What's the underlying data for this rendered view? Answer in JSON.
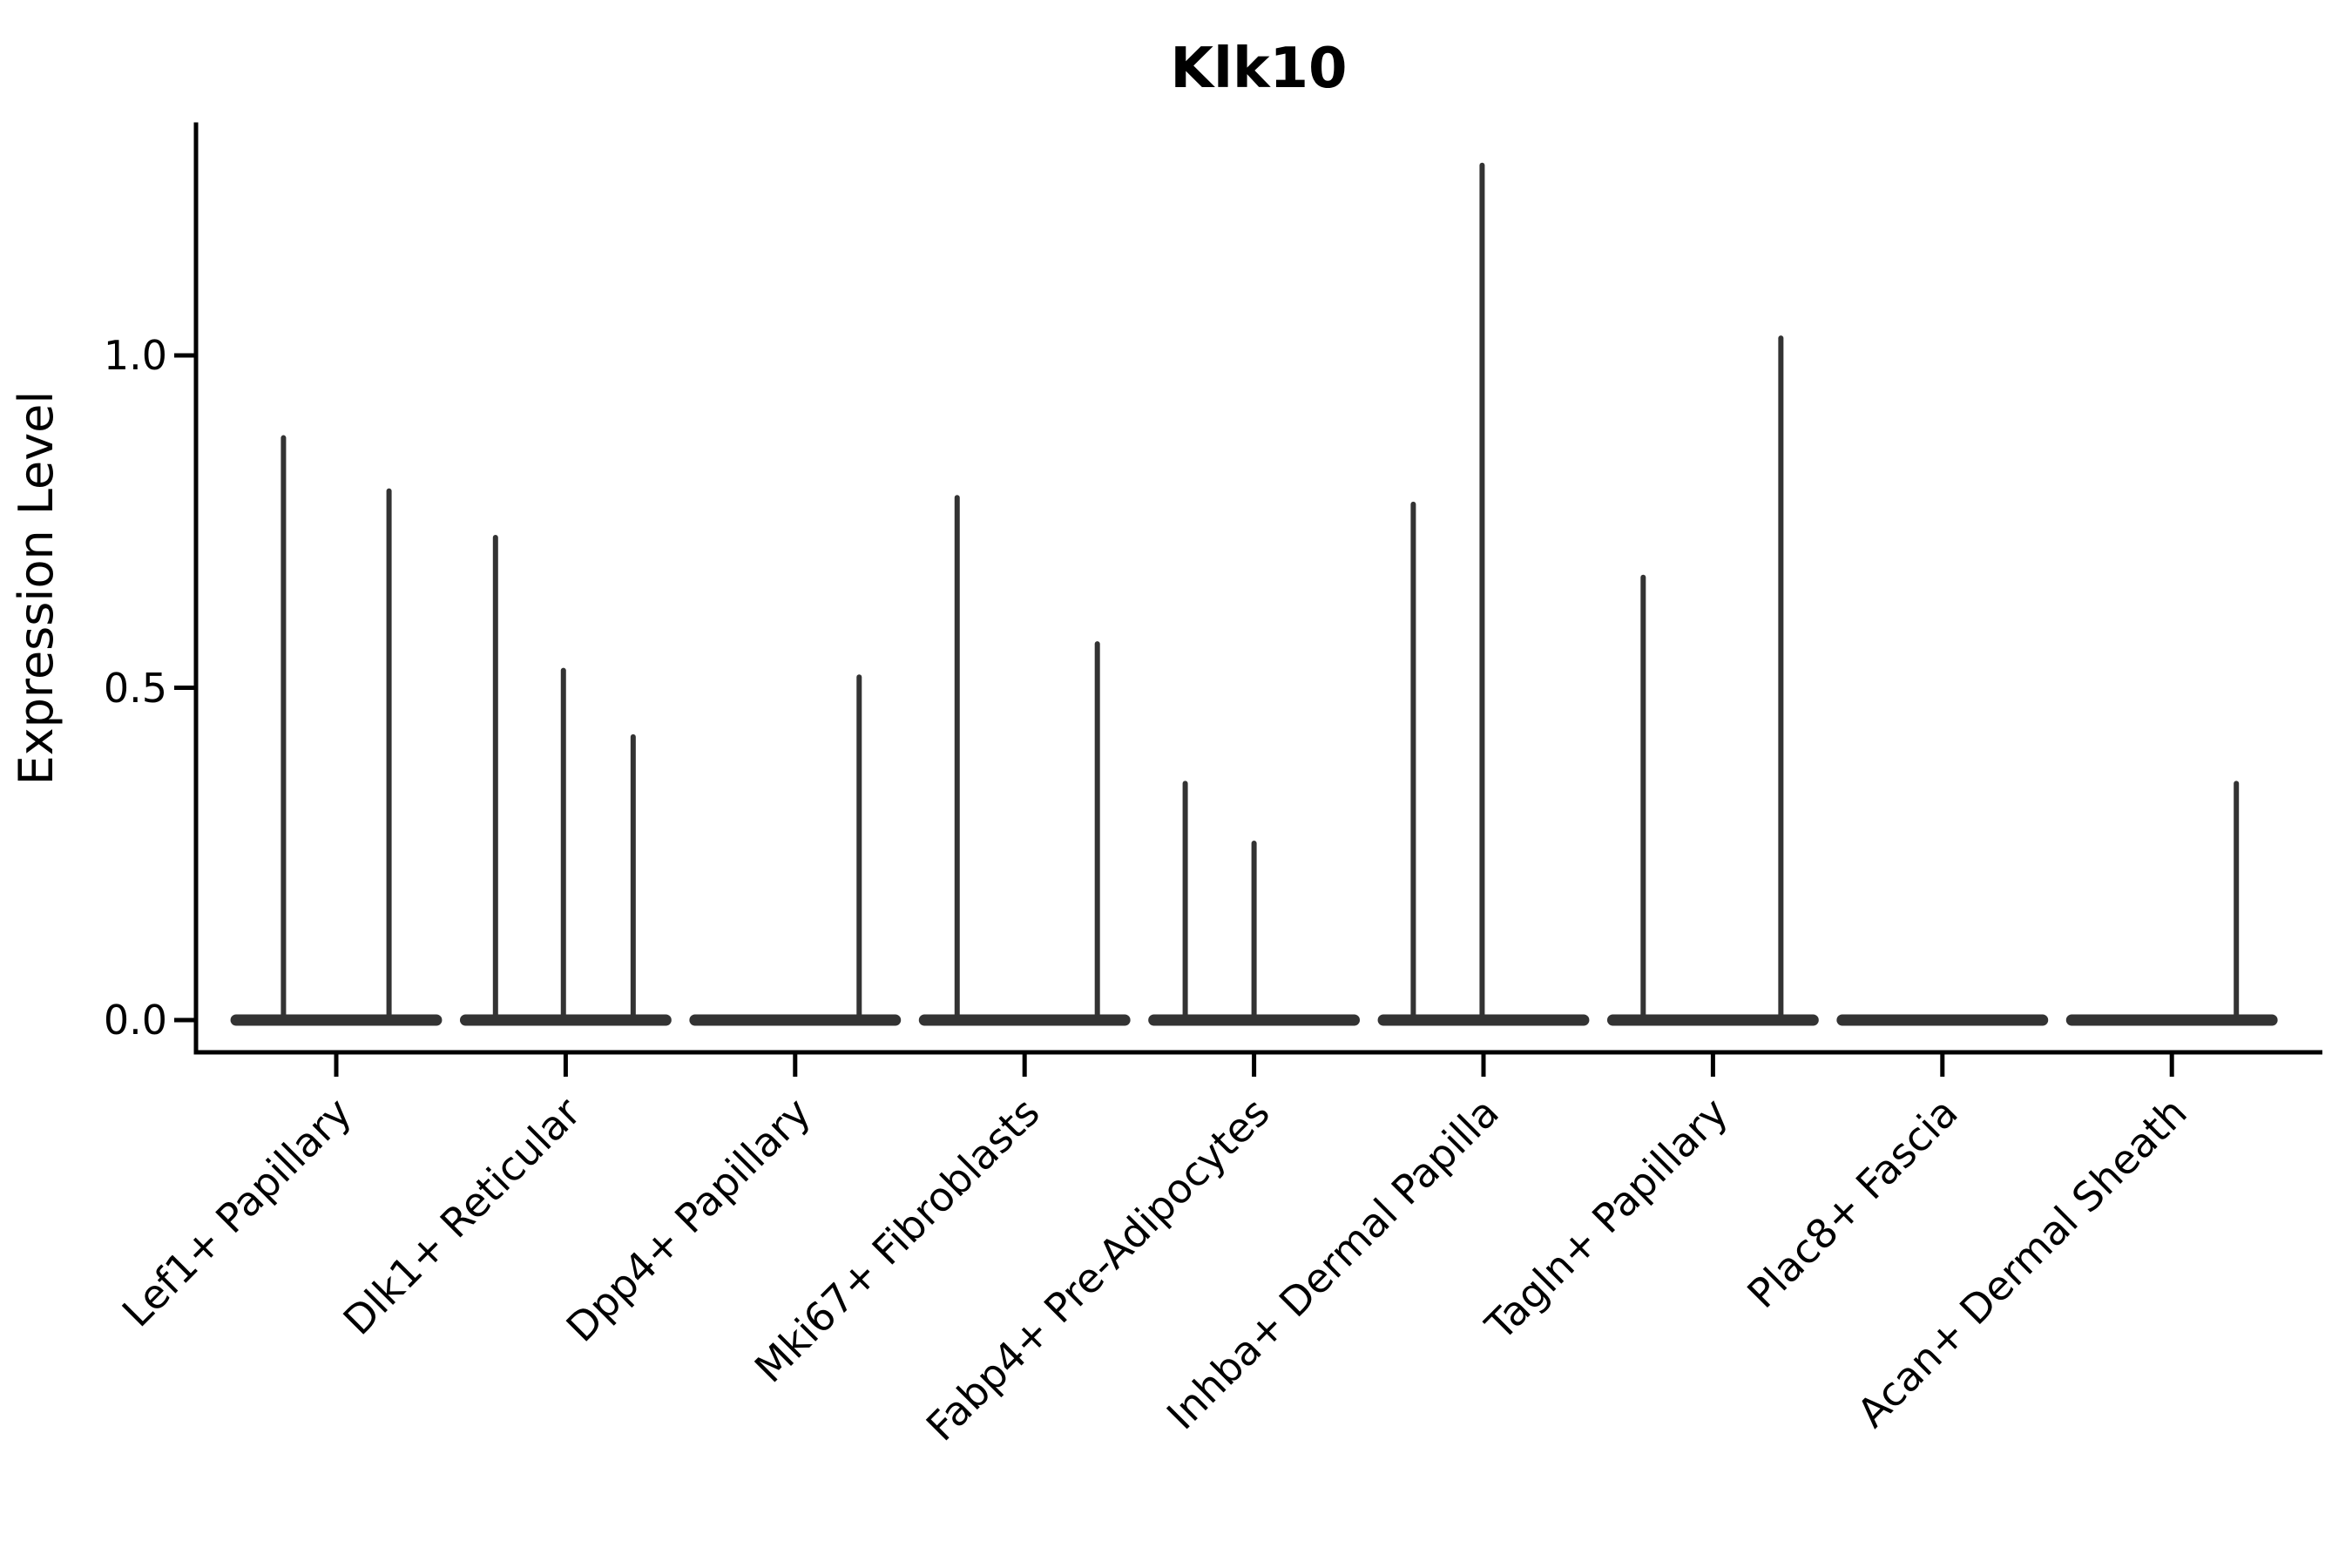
{
  "title": "Klk10",
  "y_axis": {
    "label": "Expression Level",
    "tick_labels": [
      "0.0",
      "0.5",
      "1.0"
    ]
  },
  "colors": {
    "violin": "#333333",
    "axis": "#000000",
    "text": "#000000",
    "background": "#ffffff"
  },
  "chart_data": {
    "type": "violin",
    "title": "Klk10",
    "xlabel": "",
    "ylabel": "Expression Level",
    "ylim": [
      -0.05,
      1.35
    ],
    "grid": false,
    "legend": "none",
    "y_ticks": [
      0.0,
      0.5,
      1.0
    ],
    "y_tick_labels": [
      "0.0",
      "0.5",
      "1.0"
    ],
    "categories": [
      "Lef1+ Papillary",
      "Dlk1+ Reticular",
      "Dpp4+ Papillary",
      "Mki67+ Fibroblasts",
      "Fabp4+ Pre-Adipocytes",
      "Inhba+ Dermal Papilla",
      "Tagln+ Papillary",
      "Plac8+ Fascia",
      "Acan+ Dermal Sheath"
    ],
    "violin_base_halfwidth": 0.461,
    "series": [
      {
        "category": "Lef1+ Papillary",
        "spikes": [
          {
            "offset": -0.23,
            "max": 0.88
          },
          {
            "offset": 0.23,
            "max": 0.8
          }
        ]
      },
      {
        "category": "Dlk1+ Reticular",
        "spikes": [
          {
            "offset": -0.306,
            "max": 0.73
          },
          {
            "offset": -0.01,
            "max": 0.53
          },
          {
            "offset": 0.294,
            "max": 0.43
          }
        ]
      },
      {
        "category": "Dpp4+ Papillary",
        "spikes": [
          {
            "offset": 0.279,
            "max": 0.52
          }
        ]
      },
      {
        "category": "Mki67+ Fibroblasts",
        "spikes": [
          {
            "offset": -0.294,
            "max": 0.79
          },
          {
            "offset": 0.317,
            "max": 0.57
          }
        ]
      },
      {
        "category": "Fabp4+ Pre-Adipocytes",
        "spikes": [
          {
            "offset": -0.3,
            "max": 0.36
          },
          {
            "offset": 0.0,
            "max": 0.27
          }
        ]
      },
      {
        "category": "Inhba+ Dermal Papilla",
        "spikes": [
          {
            "offset": -0.306,
            "max": 0.78
          },
          {
            "offset": -0.006,
            "max": 1.29
          }
        ]
      },
      {
        "category": "Tagln+ Papillary",
        "spikes": [
          {
            "offset": -0.304,
            "max": 0.67
          },
          {
            "offset": 0.296,
            "max": 1.03
          }
        ]
      },
      {
        "category": "Plac8+ Fascia",
        "spikes": []
      },
      {
        "category": "Acan+ Dermal Sheath",
        "spikes": [
          {
            "offset": 0.281,
            "max": 0.36
          }
        ]
      }
    ]
  }
}
